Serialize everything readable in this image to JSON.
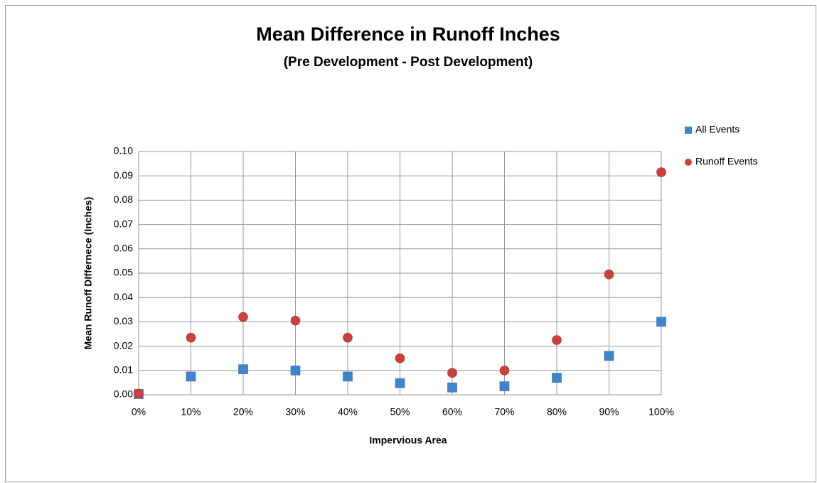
{
  "chart_data": {
    "type": "scatter",
    "title": "Mean Difference in Runoff Inches",
    "subtitle": "(Pre Development - Post Development)",
    "x_label": "Impervious Area",
    "y_label": "Mean Runoff DIffernece (Inches)",
    "x": [
      0,
      10,
      20,
      30,
      40,
      50,
      60,
      70,
      80,
      90,
      100
    ],
    "series": [
      {
        "name": "All Events",
        "color": "#3f85cd",
        "marker": "square",
        "values": [
          0.0003,
          0.0075,
          0.0105,
          0.01,
          0.0075,
          0.0048,
          0.003,
          0.0035,
          0.007,
          0.016,
          0.03
        ]
      },
      {
        "name": "Runoff Events",
        "color": "#cc3f3a",
        "marker": "circle",
        "values": [
          0.0005,
          0.0235,
          0.032,
          0.0305,
          0.0235,
          0.015,
          0.009,
          0.01,
          0.0225,
          0.0495,
          0.0915
        ]
      }
    ],
    "xlim": [
      0,
      100
    ],
    "xticks": [
      {
        "value": 0,
        "label": "0%"
      },
      {
        "value": 10,
        "label": "10%"
      },
      {
        "value": 20,
        "label": "20%"
      },
      {
        "value": 30,
        "label": "30%"
      },
      {
        "value": 40,
        "label": "40%"
      },
      {
        "value": 50,
        "label": "50%"
      },
      {
        "value": 60,
        "label": "60%"
      },
      {
        "value": 70,
        "label": "70%"
      },
      {
        "value": 80,
        "label": "80%"
      },
      {
        "value": 90,
        "label": "90%"
      },
      {
        "value": 100,
        "label": "100%"
      }
    ],
    "ylim": [
      0,
      0.1
    ],
    "yticks": [
      {
        "value": 0,
        "label": "0.00"
      },
      {
        "value": 0.01,
        "label": "0.01"
      },
      {
        "value": 0.02,
        "label": "0.02"
      },
      {
        "value": 0.03,
        "label": "0.03"
      },
      {
        "value": 0.04,
        "label": "0.04"
      },
      {
        "value": 0.05,
        "label": "0.05"
      },
      {
        "value": 0.06,
        "label": "0.06"
      },
      {
        "value": 0.07,
        "label": "0.07"
      },
      {
        "value": 0.08,
        "label": "0.08"
      },
      {
        "value": 0.09,
        "label": "0.09"
      },
      {
        "value": 0.1,
        "label": "0.10"
      }
    ],
    "grid": true,
    "legend": "right"
  }
}
